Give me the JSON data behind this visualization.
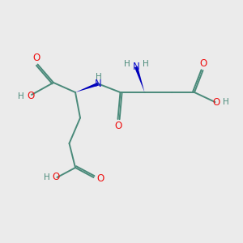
{
  "bg_color": "#ebebeb",
  "bond_color": "#4a8a7a",
  "o_color": "#ee1111",
  "n_color": "#1111cc",
  "h_color": "#4a8a7a",
  "wedge_color": "#0000bb",
  "figsize": [
    3.0,
    3.0
  ],
  "dpi": 100,
  "xlim": [
    0,
    10
  ],
  "ylim": [
    0,
    10
  ]
}
